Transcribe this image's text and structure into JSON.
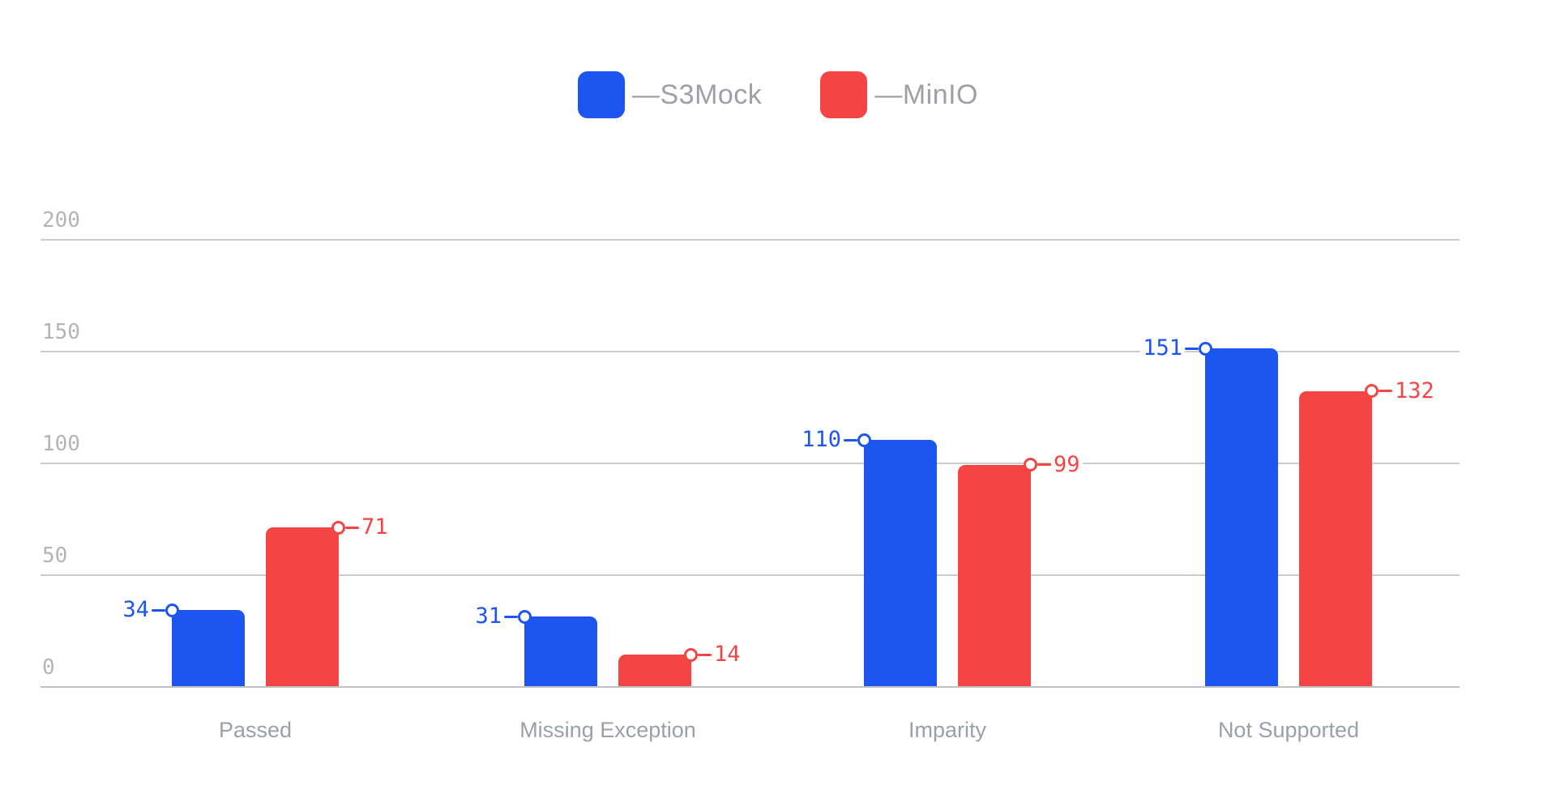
{
  "chart_data": {
    "type": "bar",
    "title": "",
    "xlabel": "",
    "ylabel": "",
    "categories": [
      "Passed",
      "Missing Exception",
      "Imparity",
      "Not Supported"
    ],
    "series": [
      {
        "name": "S3Mock",
        "color": "#1d55f0",
        "values": [
          34,
          31,
          110,
          151
        ]
      },
      {
        "name": "MinIO",
        "color": "#f44444",
        "values": [
          71,
          14,
          99,
          132
        ]
      }
    ],
    "legend_items": [
      "—S3Mock",
      "—MinIO"
    ],
    "legend_position": "top-center",
    "y_ticks": [
      0,
      50,
      100,
      150,
      200
    ],
    "ylim": [
      0,
      220
    ],
    "grid": true,
    "value_labels": {
      "S3Mock_side": "left",
      "MinIO_side": "right",
      "marker": "open-circle-with-dash"
    }
  },
  "colors": {
    "series_blue": "#1d55f0",
    "series_red": "#f44444",
    "gridline": "#cccccc",
    "baseline": "#c3c3c3",
    "tick_text": "#b4b4b4",
    "category_text": "#9ba0a6",
    "legend_text": "#9da0a4",
    "background": "#ffffff"
  }
}
